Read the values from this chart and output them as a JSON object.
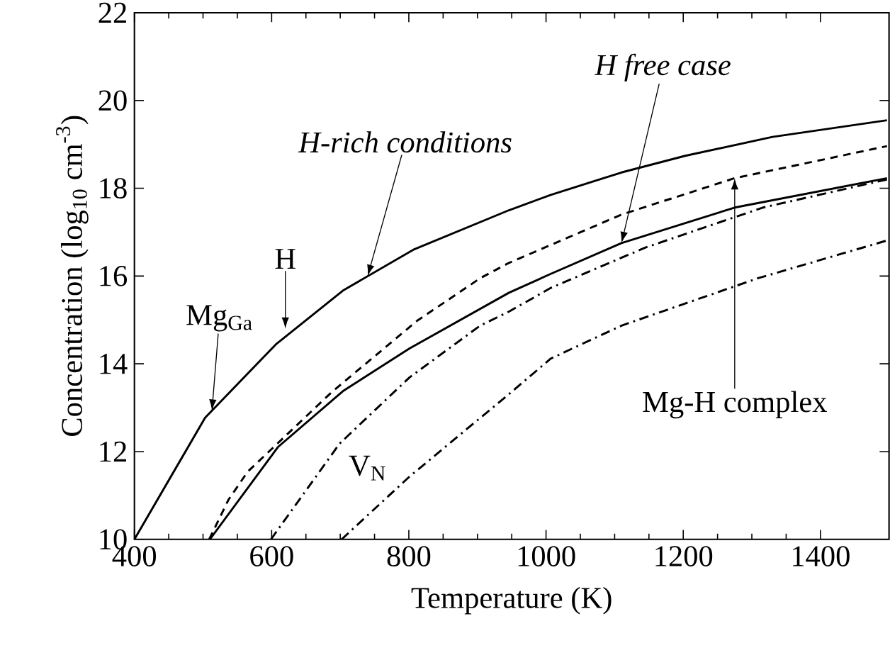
{
  "chart_data": {
    "type": "line",
    "xlabel": "Temperature (K)",
    "ylabel": "Concentration (log$_{10}$ cm$^{-3}$)",
    "xlim": [
      400,
      1500
    ],
    "ylim": [
      10,
      22
    ],
    "xticks": [
      400,
      600,
      800,
      1000,
      1200,
      1400
    ],
    "yticks": [
      10,
      12,
      14,
      16,
      18,
      20,
      22
    ],
    "grid": false,
    "marker": "none",
    "series": [
      {
        "color": "#000000",
        "line_style": "solid",
        "x": [
          400,
          503,
          606,
          705,
          808,
          946,
          1007,
          1110,
          1203,
          1330,
          1497
        ],
        "values": [
          10,
          12.77,
          14.44,
          15.68,
          16.61,
          17.5,
          17.85,
          18.36,
          18.74,
          19.17,
          19.55
        ]
      },
      {
        "color": "#000000",
        "line_style": "dashed",
        "x": [
          509,
          537,
          565,
          688,
          812,
          904,
          946,
          1110,
          1275,
          1497
        ],
        "values": [
          10,
          10.9,
          11.54,
          13.36,
          14.98,
          15.95,
          16.3,
          17.4,
          18.23,
          18.96
        ]
      },
      {
        "color": "#000000",
        "line_style": "solid",
        "x": [
          510,
          609,
          705,
          801,
          946,
          1007,
          1110,
          1275,
          1497
        ],
        "values": [
          10,
          12.1,
          13.39,
          14.35,
          15.62,
          16.05,
          16.75,
          17.56,
          18.23
        ]
      },
      {
        "color": "#000000",
        "line_style": "dashdot",
        "x": [
          599,
          699,
          801,
          904,
          946,
          1007,
          1145,
          1316,
          1497
        ],
        "values": [
          10,
          12.18,
          13.69,
          14.87,
          15.19,
          15.73,
          16.65,
          17.56,
          18.2
        ]
      },
      {
        "color": "#000000",
        "line_style": "dashdot",
        "x": [
          702,
          801,
          946,
          1007,
          1110,
          1309,
          1497
        ],
        "values": [
          10,
          11.43,
          13.31,
          14.12,
          14.87,
          15.95,
          16.81
        ]
      }
    ],
    "annotations": [
      {
        "text": "*H-rich conditions*",
        "x": 740,
        "y": 16.0
      },
      {
        "text": "*H free case*",
        "x": 1110,
        "y": 16.75
      },
      {
        "text": "H",
        "x": 620,
        "y": 14.8
      },
      {
        "text": "Mg$_{Ga}$",
        "x": 513,
        "y": 12.93
      },
      {
        "text": "V$_{N}$",
        "x": 740,
        "y": 10.55
      },
      {
        "text": "Mg-H complex",
        "x": 1275,
        "y": 18.23
      }
    ]
  }
}
